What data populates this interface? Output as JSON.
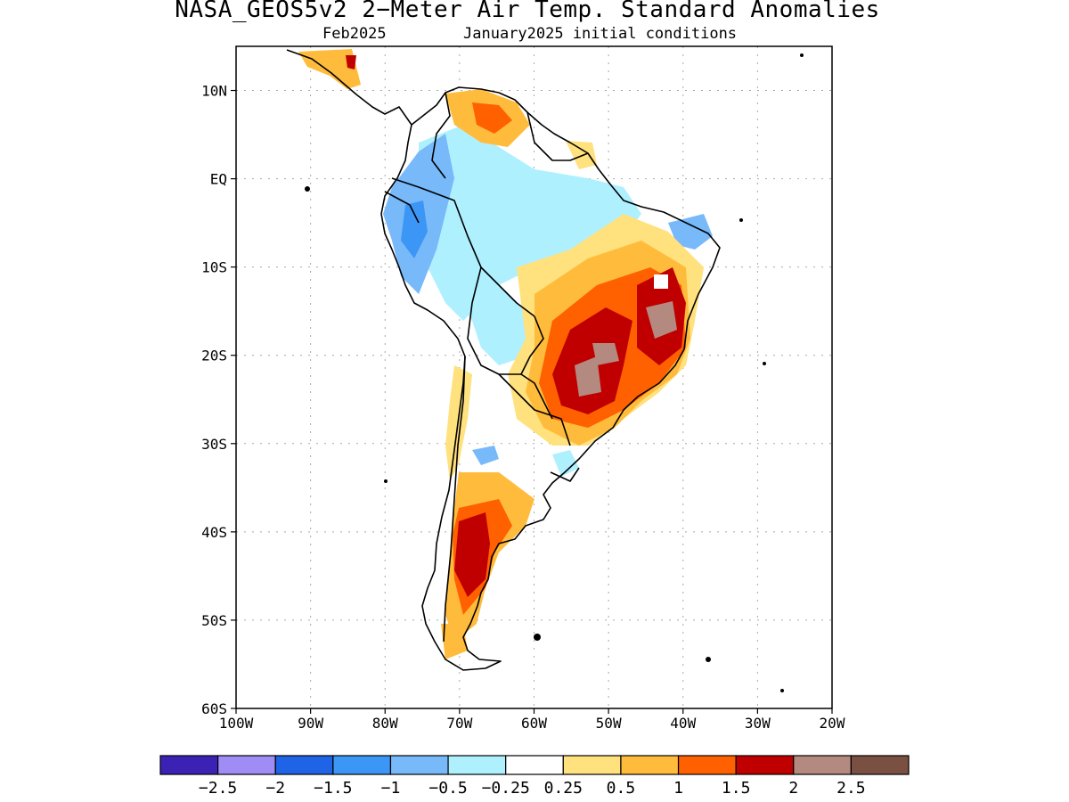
{
  "title": "NASA_GEOS5v2 2−Meter Air Temp. Standard Anomalies",
  "subtitle_left": "Feb2025",
  "subtitle_right": "January2025 initial conditions",
  "map": {
    "lon_range": [
      -100,
      -20
    ],
    "lat_range": [
      -60,
      15
    ],
    "x_ticks": [
      "100W",
      "90W",
      "80W",
      "70W",
      "60W",
      "50W",
      "40W",
      "30W",
      "20W"
    ],
    "y_ticks": [
      "10N",
      "EQ",
      "10S",
      "20S",
      "30S",
      "40S",
      "50S",
      "60S"
    ]
  },
  "colorbar": {
    "colors": [
      "#3c22b4",
      "#9f8cf5",
      "#1f64e6",
      "#3c96f5",
      "#78b9fa",
      "#aff0ff",
      "#ffffff",
      "#ffe17d",
      "#ffbc3c",
      "#ff6000",
      "#c00000",
      "#b48a80",
      "#7a5043"
    ],
    "labels": [
      "−2.5",
      "−2",
      "−1.5",
      "−1",
      "−0.5",
      "−0.25",
      "0.25",
      "0.5",
      "1",
      "1.5",
      "2",
      "2.5"
    ]
  }
}
